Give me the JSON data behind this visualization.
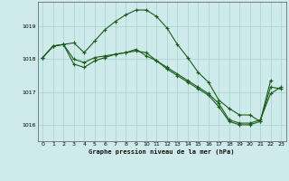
{
  "title": "Graphe pression niveau de la mer (hPa)",
  "bg_color": "#ceeaea",
  "grid_color": "#add4d4",
  "line_color": "#1a5c1a",
  "ylim": [
    1015.5,
    1019.75
  ],
  "yticks": [
    1016,
    1017,
    1018,
    1019
  ],
  "xlim": [
    -0.5,
    23.5
  ],
  "xticks": [
    0,
    1,
    2,
    3,
    4,
    5,
    6,
    7,
    8,
    9,
    10,
    11,
    12,
    13,
    14,
    15,
    16,
    17,
    18,
    19,
    20,
    21,
    22,
    23
  ],
  "series": [
    [
      1018.05,
      1018.4,
      1018.45,
      1018.0,
      1017.9,
      1018.05,
      1018.1,
      1018.15,
      1018.2,
      1018.25,
      1018.2,
      1017.95,
      1017.75,
      1017.55,
      1017.35,
      1017.15,
      1016.95,
      1016.65,
      1016.15,
      1016.05,
      1016.05,
      1016.15,
      1016.95,
      1017.15
    ],
    [
      1018.05,
      1018.4,
      1018.45,
      1018.5,
      1018.2,
      1018.55,
      1018.9,
      1019.15,
      1019.35,
      1019.5,
      1019.5,
      1019.3,
      1018.95,
      1018.45,
      1018.05,
      1017.6,
      1017.3,
      1016.75,
      1016.5,
      1016.3,
      1016.3,
      1016.1,
      1017.35,
      null
    ],
    [
      1018.05,
      1018.4,
      1018.45,
      1017.85,
      1017.75,
      1017.95,
      1018.05,
      1018.15,
      1018.2,
      1018.3,
      1018.1,
      1017.95,
      1017.7,
      1017.5,
      1017.3,
      1017.1,
      1016.9,
      1016.55,
      1016.1,
      1016.0,
      1016.0,
      1016.1,
      1017.15,
      1017.1
    ]
  ]
}
